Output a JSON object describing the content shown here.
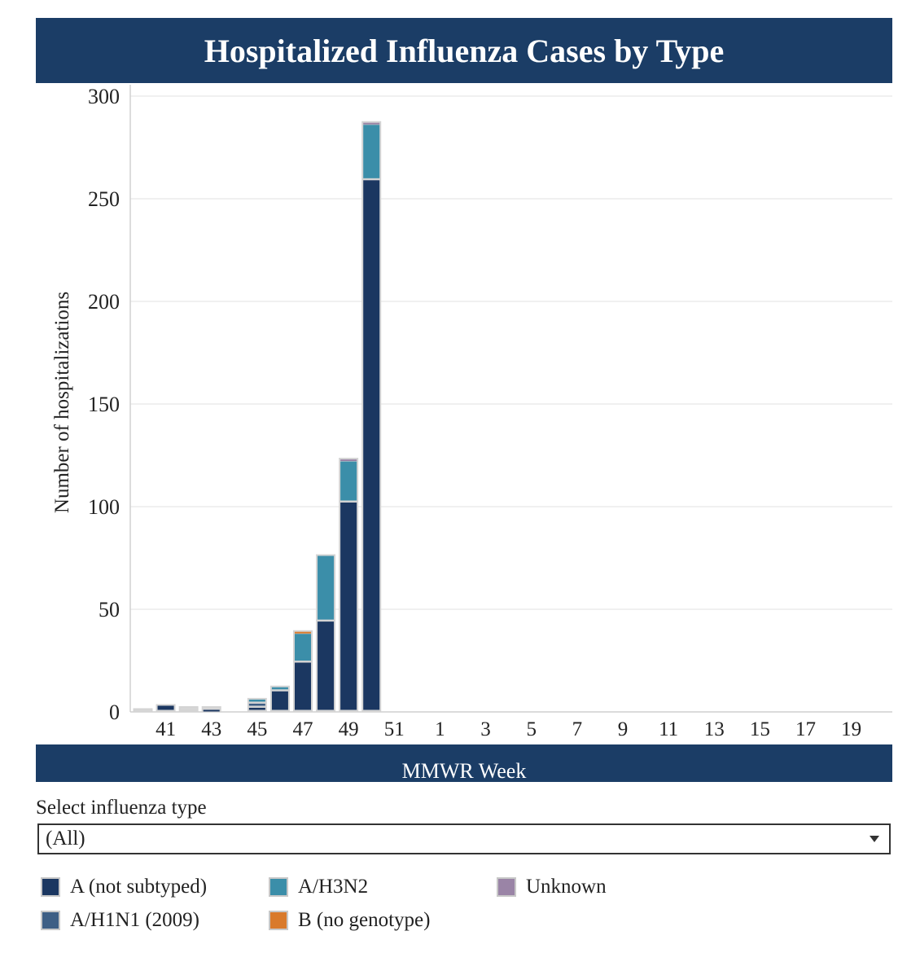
{
  "chart_data": {
    "type": "bar",
    "stacked": true,
    "title": "Hospitalized Influenza Cases by Type",
    "xlabel": "MMWR Week",
    "ylabel": "Number of hospitalizations",
    "ylim": [
      0,
      300
    ],
    "yticks": [
      0,
      50,
      100,
      150,
      200,
      250,
      300
    ],
    "grid": true,
    "legend_position": "bottom",
    "categories": [
      "40",
      "41",
      "42",
      "43",
      "44",
      "45",
      "46",
      "47",
      "48",
      "49",
      "50",
      "51",
      "52",
      "1",
      "2",
      "3",
      "4",
      "5",
      "6",
      "7",
      "8",
      "9",
      "10",
      "11",
      "12",
      "13",
      "14",
      "15",
      "16",
      "17",
      "18",
      "19",
      "20"
    ],
    "xtick_labels": [
      "41",
      "43",
      "45",
      "47",
      "49",
      "51",
      "1",
      "3",
      "5",
      "7",
      "9",
      "11",
      "13",
      "15",
      "17",
      "19"
    ],
    "series": [
      {
        "name": "A (not subtyped)",
        "color": "#1b3761",
        "values": [
          0,
          3,
          0,
          1,
          0,
          2,
          10,
          24,
          44,
          102,
          259,
          0,
          0,
          0,
          0,
          0,
          0,
          0,
          0,
          0,
          0,
          0,
          0,
          0,
          0,
          0,
          0,
          0,
          0,
          0,
          0,
          0,
          0
        ]
      },
      {
        "name": "A/H1N1 (2009)",
        "color": "#3e5f85",
        "values": [
          0,
          0,
          0,
          0,
          0,
          2,
          0,
          0,
          0,
          0,
          0,
          0,
          0,
          0,
          0,
          0,
          0,
          0,
          0,
          0,
          0,
          0,
          0,
          0,
          0,
          0,
          0,
          0,
          0,
          0,
          0,
          0,
          0
        ]
      },
      {
        "name": "A/H3N2",
        "color": "#3b8ea9",
        "values": [
          0,
          0,
          0,
          0,
          0,
          2,
          2,
          14,
          32,
          20,
          27,
          0,
          0,
          0,
          0,
          0,
          0,
          0,
          0,
          0,
          0,
          0,
          0,
          0,
          0,
          0,
          0,
          0,
          0,
          0,
          0,
          0,
          0
        ]
      },
      {
        "name": "B (no genotype)",
        "color": "#d97a2b",
        "values": [
          0,
          0,
          0,
          0,
          0,
          0,
          0,
          1,
          0,
          0,
          0,
          0,
          0,
          0,
          0,
          0,
          0,
          0,
          0,
          0,
          0,
          0,
          0,
          0,
          0,
          0,
          0,
          0,
          0,
          0,
          0,
          0,
          0
        ]
      },
      {
        "name": "Unknown",
        "color": "#9a84a6",
        "values": [
          0,
          0,
          0,
          0,
          0,
          0,
          0,
          0,
          0,
          1,
          1,
          0,
          0,
          0,
          0,
          0,
          0,
          0,
          0,
          0,
          0,
          0,
          0,
          0,
          0,
          0,
          0,
          0,
          0,
          0,
          0,
          0,
          0
        ]
      }
    ],
    "other_values": [
      1,
      0,
      2,
      1,
      0,
      0,
      0,
      0,
      0,
      0,
      0,
      0,
      0,
      0,
      0,
      0,
      0,
      0,
      0,
      0,
      0,
      0,
      0,
      0,
      0,
      0,
      0,
      0,
      0,
      0,
      0,
      0,
      0
    ],
    "other_color": "#d6d6d6"
  },
  "filter": {
    "label": "Select influenza type",
    "selected": "(All)"
  },
  "legend": [
    {
      "label": "A (not subtyped)",
      "color": "#1b3761"
    },
    {
      "label": "A/H1N1 (2009)",
      "color": "#3e5f85"
    },
    {
      "label": "A/H3N2",
      "color": "#3b8ea9"
    },
    {
      "label": "B (no genotype)",
      "color": "#d97a2b"
    },
    {
      "label": "Unknown",
      "color": "#9a84a6"
    }
  ]
}
